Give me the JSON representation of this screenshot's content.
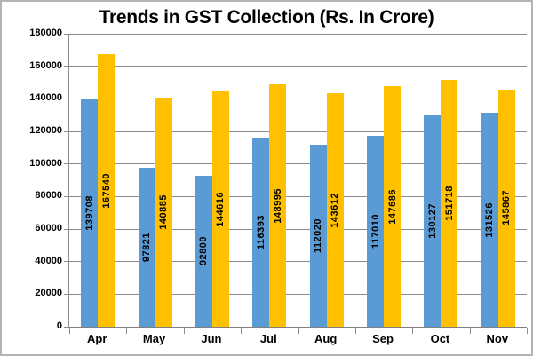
{
  "chart_data": {
    "type": "bar",
    "title": "Trends in GST Collection (Rs. In Crore)",
    "categories": [
      "Apr",
      "May",
      "Jun",
      "Jul",
      "Aug",
      "Sep",
      "Oct",
      "Nov"
    ],
    "series": [
      {
        "name": "series-blue",
        "color": "#5B9BD5",
        "values": [
          139708,
          97821,
          92800,
          116393,
          112020,
          117010,
          130127,
          131526
        ]
      },
      {
        "name": "series-gold",
        "color": "#FFC000",
        "values": [
          167540,
          140885,
          144616,
          148995,
          143612,
          147686,
          151718,
          145867
        ]
      }
    ],
    "xlabel": "",
    "ylabel": "",
    "ylim": [
      0,
      180000
    ],
    "ytick_step": 20000,
    "ytick_labels": [
      "0",
      "20000",
      "40000",
      "60000",
      "80000",
      "100000",
      "120000",
      "140000",
      "160000",
      "180000"
    ],
    "grid": true,
    "legend": "none",
    "data_labels": "inside-center-rotated"
  },
  "colors": {
    "gridline": "#8C8C8C",
    "axis": "#808080",
    "text": "#000000",
    "frame_border": "#B3B3B3",
    "background": "#FFFFFF"
  }
}
